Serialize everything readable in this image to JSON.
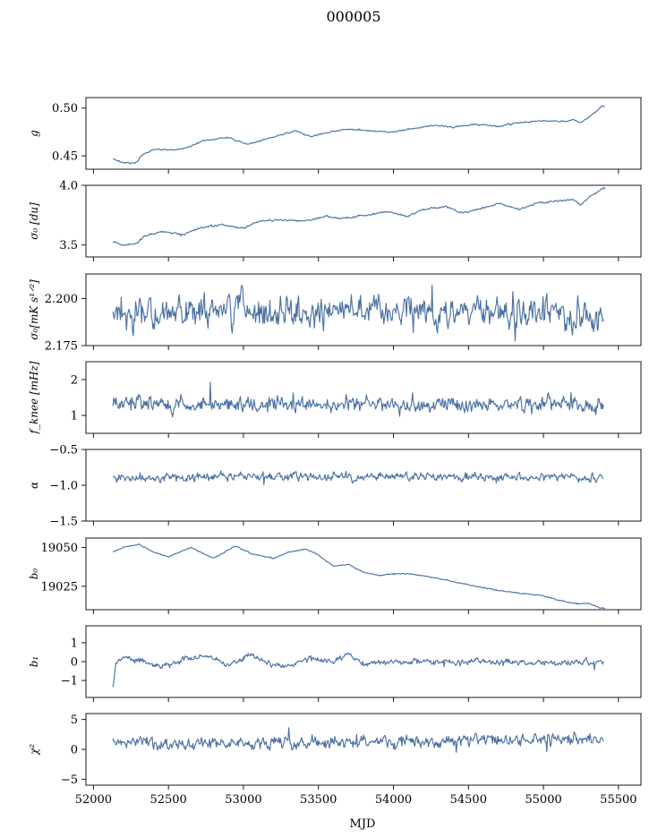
{
  "title": "000005",
  "xlabel": "MJD",
  "xlim": [
    51950,
    55650
  ],
  "xticks": [
    52000,
    52500,
    53000,
    53500,
    54000,
    54500,
    55000,
    55500
  ],
  "line_color": "#4c72a3",
  "chart_data": [
    {
      "type": "line",
      "name": "g",
      "ylabel": "g",
      "ylim": [
        0.436,
        0.511
      ],
      "yticks": [
        0.45,
        0.5
      ],
      "ytick_labels": [
        "0.45",
        "0.50"
      ],
      "x": [
        52130,
        52200,
        52280,
        52330,
        52420,
        52550,
        52650,
        52730,
        52900,
        53030,
        53200,
        53350,
        53450,
        53600,
        53700,
        53850,
        54000,
        54100,
        54280,
        54400,
        54550,
        54700,
        54850,
        55000,
        55150,
        55200,
        55250,
        55300,
        55390,
        55410
      ],
      "values": [
        0.447,
        0.443,
        0.442,
        0.452,
        0.457,
        0.456,
        0.46,
        0.466,
        0.469,
        0.462,
        0.47,
        0.476,
        0.47,
        0.476,
        0.478,
        0.476,
        0.475,
        0.478,
        0.482,
        0.48,
        0.483,
        0.481,
        0.485,
        0.487,
        0.486,
        0.488,
        0.485,
        0.49,
        0.502,
        0.502
      ],
      "noise": 0.0006
    },
    {
      "type": "line",
      "name": "sigma0_du",
      "ylabel": "σ₀ [du]",
      "ylim": [
        3.4,
        4.0
      ],
      "yticks": [
        3.5,
        4.0
      ],
      "ytick_labels": [
        "3.5",
        "4.0"
      ],
      "x": [
        52130,
        52200,
        52280,
        52350,
        52450,
        52600,
        52700,
        52850,
        53000,
        53100,
        53250,
        53400,
        53550,
        53650,
        53800,
        53950,
        54100,
        54200,
        54350,
        54450,
        54600,
        54700,
        54850,
        54950,
        55100,
        55200,
        55250,
        55300,
        55390,
        55410
      ],
      "values": [
        3.53,
        3.5,
        3.51,
        3.58,
        3.61,
        3.59,
        3.64,
        3.67,
        3.64,
        3.7,
        3.71,
        3.7,
        3.74,
        3.72,
        3.75,
        3.78,
        3.74,
        3.8,
        3.82,
        3.77,
        3.81,
        3.85,
        3.8,
        3.85,
        3.87,
        3.88,
        3.83,
        3.9,
        3.97,
        3.97
      ],
      "noise": 0.006
    },
    {
      "type": "line",
      "name": "sigma0_mK",
      "ylabel": "σ₀[mK s¹ᐟ²]",
      "ylim": [
        2.175,
        2.213
      ],
      "yticks": [
        2.175,
        2.2
      ],
      "ytick_labels": [
        "2.175",
        "2.200"
      ],
      "x": [
        52130,
        52600,
        53000,
        53500,
        54000,
        54500,
        54900,
        55100,
        55250,
        55400
      ],
      "values": [
        2.192,
        2.192,
        2.195,
        2.193,
        2.193,
        2.193,
        2.192,
        2.193,
        2.189,
        2.19
      ],
      "noise": 0.0065
    },
    {
      "type": "line",
      "name": "fknee",
      "ylabel": "f_knee [mHz]",
      "ylim": [
        0.5,
        2.5
      ],
      "yticks": [
        1,
        2
      ],
      "ytick_labels": [
        "1",
        "2"
      ],
      "x": [
        52130,
        53000,
        54000,
        55000,
        55400
      ],
      "values": [
        1.32,
        1.32,
        1.3,
        1.32,
        1.3
      ],
      "noise": 0.17
    },
    {
      "type": "line",
      "name": "alpha",
      "ylabel": "α",
      "ylim": [
        -1.5,
        -0.5
      ],
      "yticks": [
        -1.5,
        -1.0,
        -0.5
      ],
      "ytick_labels": [
        "−1.5",
        "−1.0",
        "−0.5"
      ],
      "x": [
        52130,
        53000,
        54000,
        55000,
        55400
      ],
      "values": [
        -0.89,
        -0.88,
        -0.88,
        -0.89,
        -0.89
      ],
      "noise": 0.05
    },
    {
      "type": "line",
      "name": "b0",
      "ylabel": "b₀",
      "ylim": [
        19010,
        19056
      ],
      "yticks": [
        19025,
        19050
      ],
      "ytick_labels": [
        "19025",
        "19050"
      ],
      "x": [
        52130,
        52150,
        52200,
        52300,
        52400,
        52500,
        52650,
        52800,
        52950,
        53050,
        53200,
        53300,
        53420,
        53500,
        53600,
        53700,
        53800,
        53900,
        54000,
        54100,
        54250,
        54400,
        54600,
        54800,
        55000,
        55100,
        55200,
        55300,
        55380,
        55410
      ],
      "values": [
        19047,
        19048,
        19050,
        19052,
        19047,
        19044,
        19050,
        19043,
        19051,
        19046,
        19043,
        19047,
        19049,
        19045,
        19038,
        19039,
        19034,
        19032,
        19033,
        19033,
        19031,
        19028,
        19024,
        19021,
        19019,
        19016,
        19014,
        19014,
        19011,
        19011
      ],
      "noise": 0.25
    },
    {
      "type": "line",
      "name": "b1",
      "ylabel": "b₁",
      "ylim": [
        -1.9,
        1.9
      ],
      "yticks": [
        -1,
        0,
        1
      ],
      "ytick_labels": [
        "−1",
        "0",
        "1"
      ],
      "x": [
        52130,
        52150,
        52200,
        52300,
        52450,
        52600,
        52750,
        52900,
        53050,
        53200,
        53300,
        53450,
        53600,
        53700,
        53800,
        54000,
        54500,
        55000,
        55400
      ],
      "values": [
        -1.4,
        -0.1,
        0.25,
        0.1,
        -0.3,
        0.1,
        0.3,
        -0.2,
        0.35,
        -0.25,
        -0.15,
        0.2,
        0.0,
        0.35,
        -0.15,
        0.0,
        0.0,
        -0.1,
        0.0
      ],
      "noise": 0.12
    },
    {
      "type": "line",
      "name": "chi2",
      "ylabel": "χ²",
      "ylim": [
        -6,
        6
      ],
      "yticks": [
        -5,
        0,
        5
      ],
      "ytick_labels": [
        "−5",
        "0",
        "5"
      ],
      "x": [
        52130,
        53000,
        54000,
        55000,
        55400
      ],
      "values": [
        1.0,
        1.0,
        1.3,
        1.6,
        2.0
      ],
      "noise": 0.8
    }
  ]
}
